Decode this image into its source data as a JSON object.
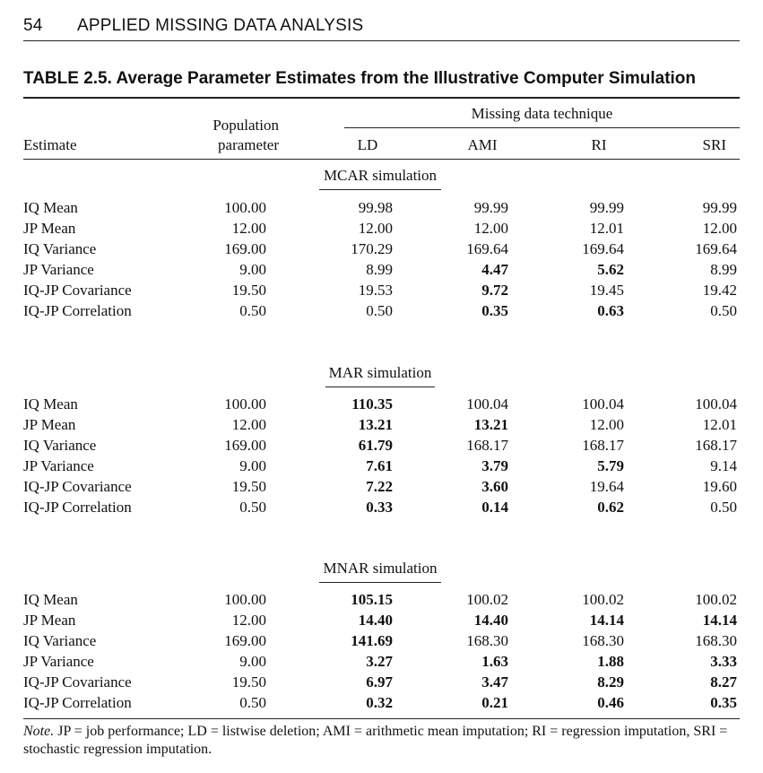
{
  "page_header": {
    "page_number": "54",
    "running_title": "APPLIED MISSING DATA ANALYSIS"
  },
  "table": {
    "caption": "TABLE 2.5. Average Parameter Estimates from the Illustrative Computer Simulation",
    "spanner": "Missing data technique",
    "col_estimate": "Estimate",
    "col_population_l1": "Population",
    "col_population_l2": "parameter",
    "techniques": [
      "LD",
      "AMI",
      "RI",
      "SRI"
    ],
    "sections": [
      {
        "title": "MCAR simulation",
        "rows": [
          {
            "label": "IQ Mean",
            "pop": "100.00",
            "vals": [
              "99.98",
              "99.99",
              "99.99",
              "99.99"
            ],
            "bold": [
              false,
              false,
              false,
              false
            ]
          },
          {
            "label": "JP Mean",
            "pop": "12.00",
            "vals": [
              "12.00",
              "12.00",
              "12.01",
              "12.00"
            ],
            "bold": [
              false,
              false,
              false,
              false
            ]
          },
          {
            "label": "IQ Variance",
            "pop": "169.00",
            "vals": [
              "170.29",
              "169.64",
              "169.64",
              "169.64"
            ],
            "bold": [
              false,
              false,
              false,
              false
            ]
          },
          {
            "label": "JP Variance",
            "pop": "9.00",
            "vals": [
              "8.99",
              "4.47",
              "5.62",
              "8.99"
            ],
            "bold": [
              false,
              true,
              true,
              false
            ]
          },
          {
            "label": "IQ-JP Covariance",
            "pop": "19.50",
            "vals": [
              "19.53",
              "9.72",
              "19.45",
              "19.42"
            ],
            "bold": [
              false,
              true,
              false,
              false
            ]
          },
          {
            "label": "IQ-JP Correlation",
            "pop": "0.50",
            "vals": [
              "0.50",
              "0.35",
              "0.63",
              "0.50"
            ],
            "bold": [
              false,
              true,
              true,
              false
            ]
          }
        ]
      },
      {
        "title": "MAR simulation",
        "rows": [
          {
            "label": "IQ Mean",
            "pop": "100.00",
            "vals": [
              "110.35",
              "100.04",
              "100.04",
              "100.04"
            ],
            "bold": [
              true,
              false,
              false,
              false
            ]
          },
          {
            "label": "JP Mean",
            "pop": "12.00",
            "vals": [
              "13.21",
              "13.21",
              "12.00",
              "12.01"
            ],
            "bold": [
              true,
              true,
              false,
              false
            ]
          },
          {
            "label": "IQ Variance",
            "pop": "169.00",
            "vals": [
              "61.79",
              "168.17",
              "168.17",
              "168.17"
            ],
            "bold": [
              true,
              false,
              false,
              false
            ]
          },
          {
            "label": "JP Variance",
            "pop": "9.00",
            "vals": [
              "7.61",
              "3.79",
              "5.79",
              "9.14"
            ],
            "bold": [
              true,
              true,
              true,
              false
            ]
          },
          {
            "label": "IQ-JP Covariance",
            "pop": "19.50",
            "vals": [
              "7.22",
              "3.60",
              "19.64",
              "19.60"
            ],
            "bold": [
              true,
              true,
              false,
              false
            ]
          },
          {
            "label": "IQ-JP Correlation",
            "pop": "0.50",
            "vals": [
              "0.33",
              "0.14",
              "0.62",
              "0.50"
            ],
            "bold": [
              true,
              true,
              true,
              false
            ]
          }
        ]
      },
      {
        "title": "MNAR simulation",
        "rows": [
          {
            "label": "IQ Mean",
            "pop": "100.00",
            "vals": [
              "105.15",
              "100.02",
              "100.02",
              "100.02"
            ],
            "bold": [
              true,
              false,
              false,
              false
            ]
          },
          {
            "label": "JP Mean",
            "pop": "12.00",
            "vals": [
              "14.40",
              "14.40",
              "14.14",
              "14.14"
            ],
            "bold": [
              true,
              true,
              true,
              true
            ]
          },
          {
            "label": "IQ Variance",
            "pop": "169.00",
            "vals": [
              "141.69",
              "168.30",
              "168.30",
              "168.30"
            ],
            "bold": [
              true,
              false,
              false,
              false
            ]
          },
          {
            "label": "JP Variance",
            "pop": "9.00",
            "vals": [
              "3.27",
              "1.63",
              "1.88",
              "3.33"
            ],
            "bold": [
              true,
              true,
              true,
              true
            ]
          },
          {
            "label": "IQ-JP Covariance",
            "pop": "19.50",
            "vals": [
              "6.97",
              "3.47",
              "8.29",
              "8.27"
            ],
            "bold": [
              true,
              true,
              true,
              true
            ]
          },
          {
            "label": "IQ-JP Correlation",
            "pop": "0.50",
            "vals": [
              "0.32",
              "0.21",
              "0.46",
              "0.35"
            ],
            "bold": [
              true,
              true,
              true,
              true
            ]
          }
        ]
      }
    ]
  },
  "note": {
    "label": "Note.",
    "text": " JP = job performance; LD = listwise deletion; AMI = arithmetic mean imputation; RI = regression imputation, SRI = stochastic regression imputation."
  }
}
